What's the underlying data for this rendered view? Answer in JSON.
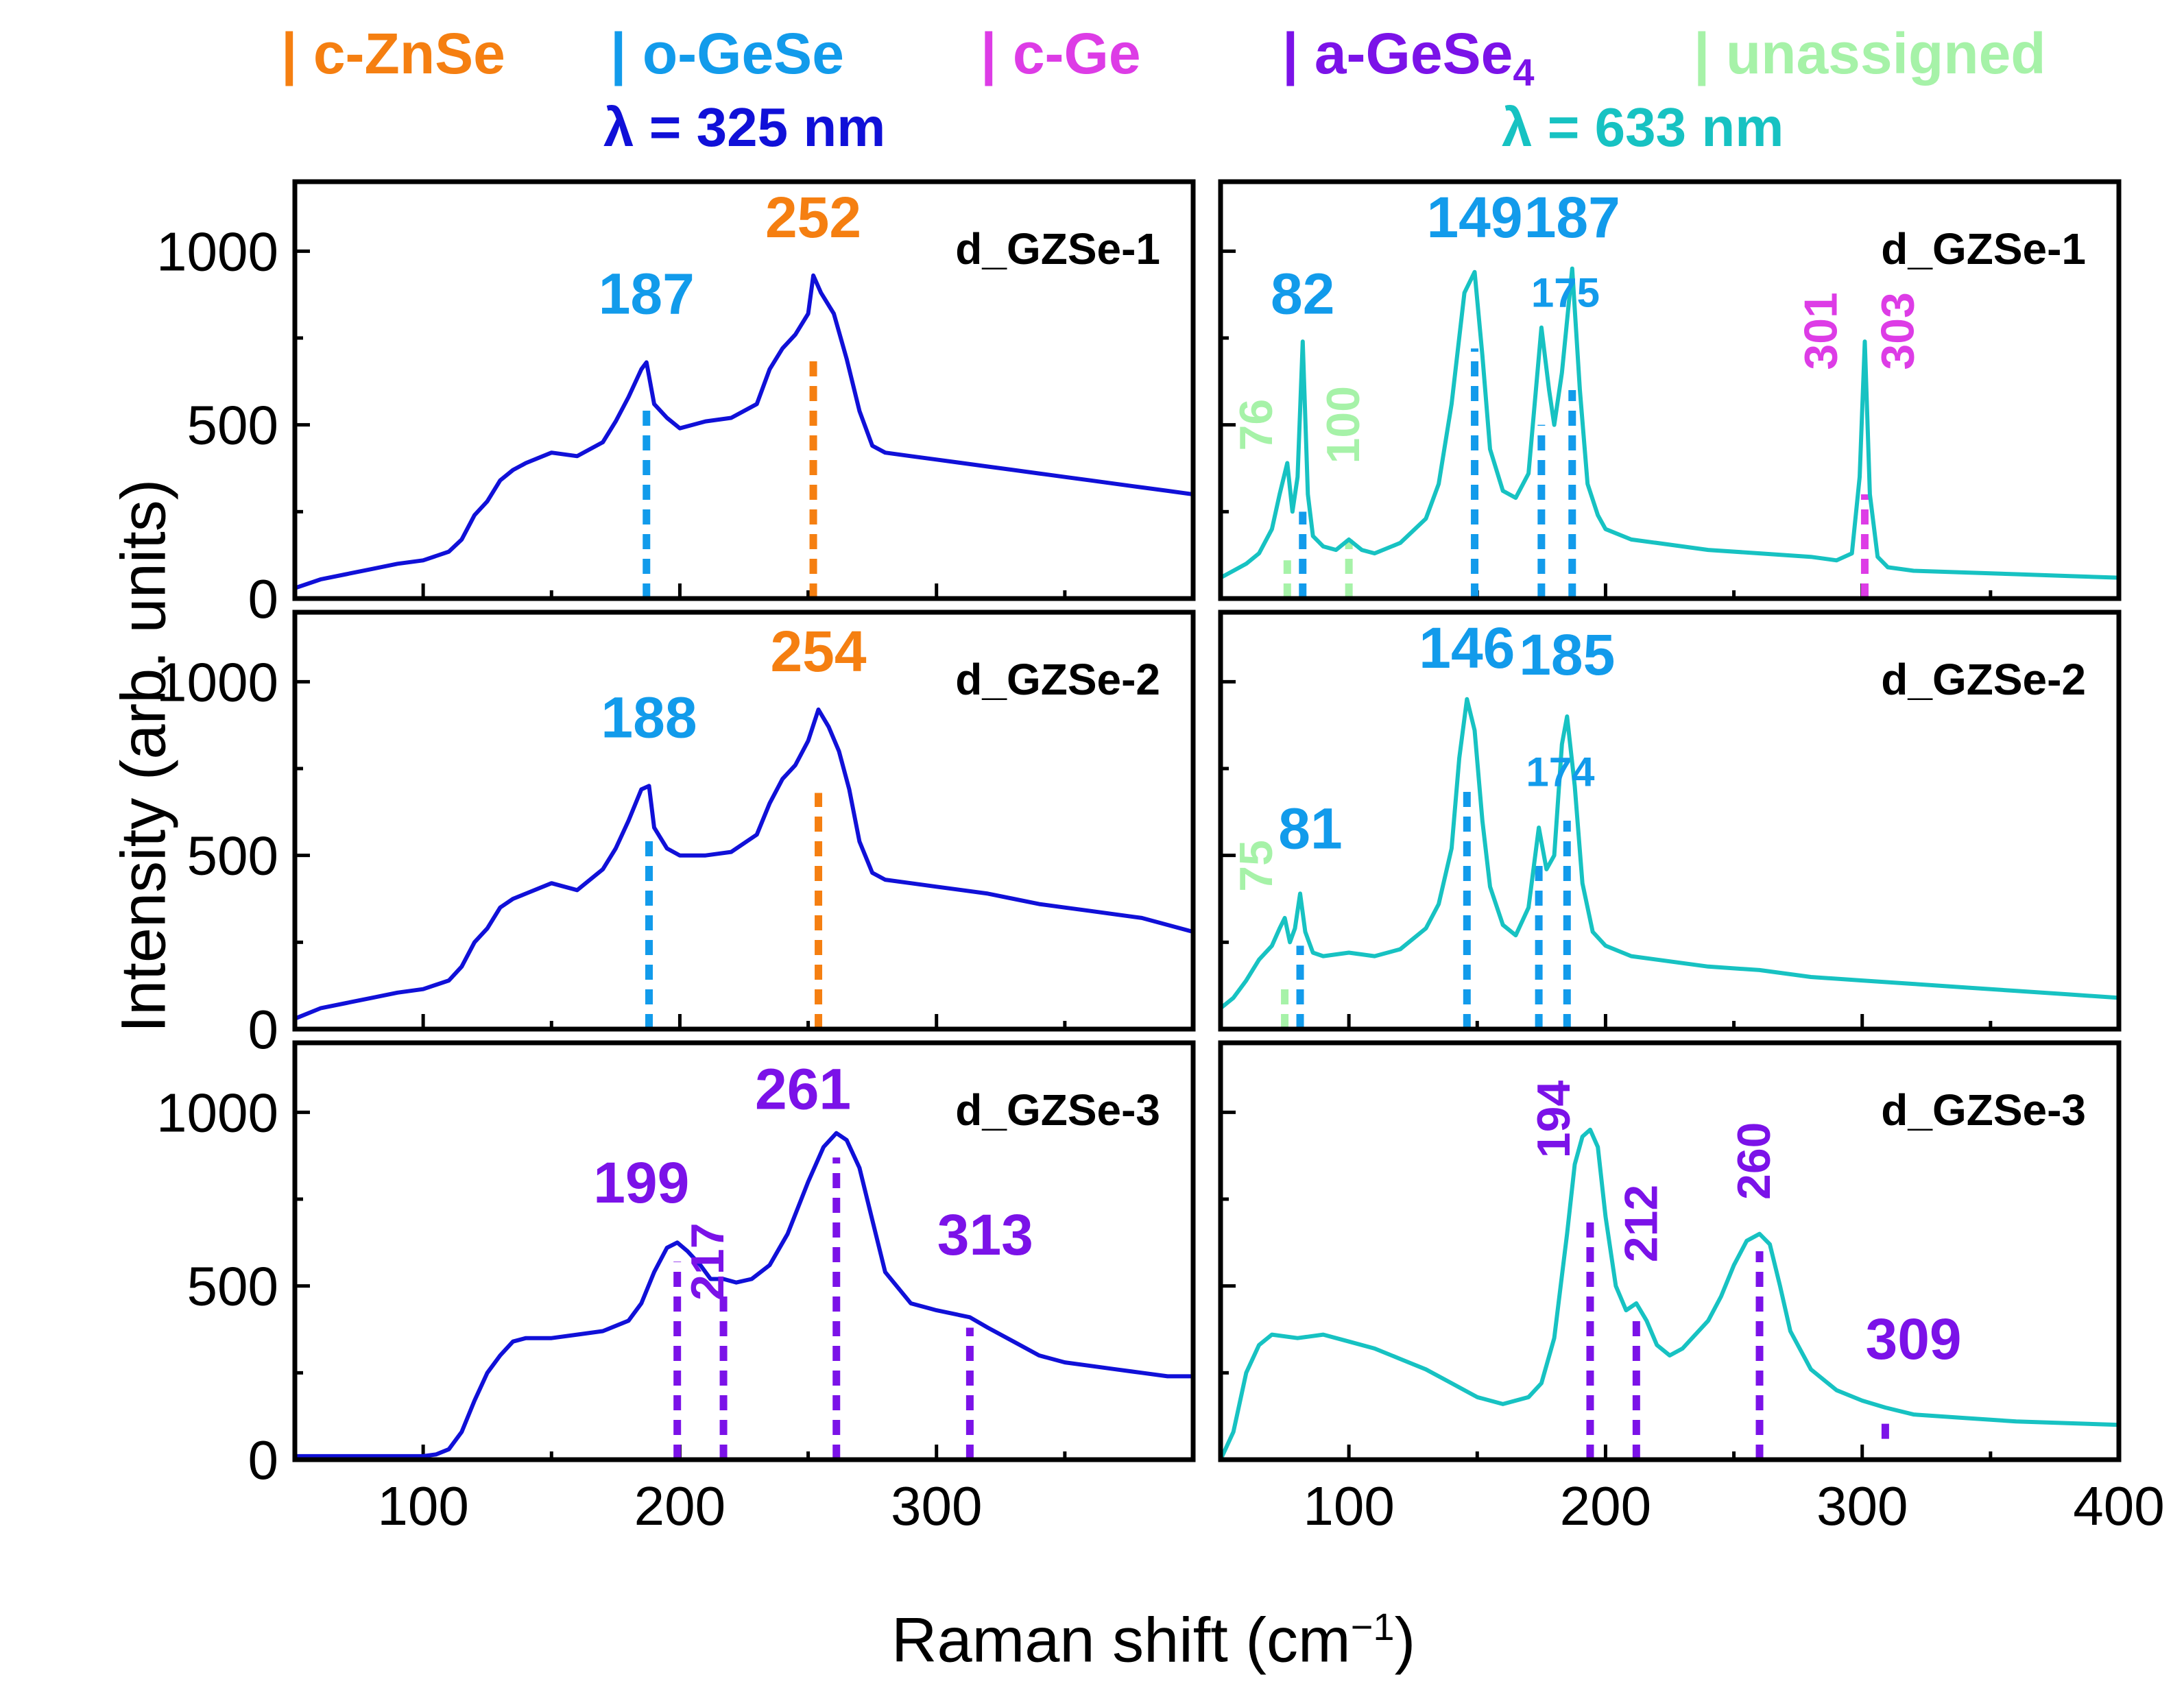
{
  "legend": [
    {
      "label": "| c-ZnSe",
      "color": "#F57F11"
    },
    {
      "label": "| o-GeSe",
      "color": "#129BEB"
    },
    {
      "label": "| c-Ge",
      "color": "#DD3CE6"
    },
    {
      "label": "| a-GeSe",
      "sub": "4",
      "color": "#7B12E8"
    },
    {
      "label": "| unassigned",
      "color": "#A6F2A8"
    }
  ],
  "lambda_left": "λ = 325 nm",
  "lambda_right": "λ = 633 nm",
  "lambda_left_color": "#1010D8",
  "lambda_right_color": "#17C2C2",
  "ylabel": "Intensity (arb. units)",
  "xlabel": "Raman shift (cm",
  "xlabel_sup": "−1",
  "xlabel_close": ")",
  "chart_data": [
    {
      "type": "line",
      "id": "left-1",
      "title": "d_GZSe-1",
      "laser": "325 nm",
      "series_color": "#1010D8",
      "xlim": [
        50,
        400
      ],
      "ylim": [
        0,
        1200
      ],
      "xticks": [],
      "yticks": [
        0,
        500,
        1000
      ],
      "ytick_labels": [
        "0",
        "500",
        "1000"
      ],
      "x": [
        50,
        60,
        70,
        80,
        90,
        100,
        110,
        115,
        120,
        125,
        130,
        135,
        140,
        150,
        160,
        170,
        175,
        180,
        185,
        187,
        190,
        195,
        200,
        210,
        220,
        230,
        235,
        240,
        245,
        250,
        252,
        255,
        260,
        265,
        270,
        275,
        280,
        290,
        300,
        310,
        320,
        330,
        340,
        350,
        360,
        370,
        380,
        390,
        400
      ],
      "y": [
        30,
        55,
        70,
        85,
        100,
        110,
        135,
        170,
        240,
        280,
        340,
        370,
        390,
        420,
        410,
        450,
        510,
        580,
        660,
        680,
        560,
        520,
        490,
        510,
        520,
        560,
        660,
        720,
        760,
        820,
        930,
        880,
        820,
        690,
        540,
        440,
        420,
        410,
        400,
        390,
        380,
        370,
        360,
        350,
        340,
        330,
        320,
        310,
        300
      ],
      "annotations": [
        {
          "label": "187",
          "x": 187,
          "color": "#129BEB",
          "orientation": "horizontal",
          "text_y": 820
        },
        {
          "label": "252",
          "x": 252,
          "color": "#F57F11",
          "orientation": "horizontal",
          "text_y": 1040
        }
      ],
      "markers": [
        {
          "x": 187,
          "y0": 0,
          "y1": 550,
          "color": "#129BEB"
        },
        {
          "x": 252,
          "y0": 0,
          "y1": 700,
          "color": "#F57F11"
        }
      ]
    },
    {
      "type": "line",
      "id": "left-2",
      "title": "d_GZSe-2",
      "laser": "325 nm",
      "series_color": "#1010D8",
      "xlim": [
        50,
        400
      ],
      "ylim": [
        0,
        1200
      ],
      "xticks": [],
      "yticks": [
        0,
        500,
        1000
      ],
      "ytick_labels": [
        "0",
        "500",
        "1000"
      ],
      "x": [
        50,
        60,
        70,
        80,
        90,
        100,
        110,
        115,
        120,
        125,
        130,
        135,
        140,
        150,
        160,
        170,
        175,
        180,
        185,
        188,
        190,
        195,
        200,
        210,
        220,
        230,
        235,
        240,
        245,
        250,
        254,
        258,
        262,
        266,
        270,
        275,
        280,
        290,
        300,
        310,
        320,
        330,
        340,
        350,
        360,
        370,
        380,
        390,
        400
      ],
      "y": [
        30,
        60,
        75,
        90,
        105,
        115,
        140,
        180,
        250,
        290,
        350,
        375,
        390,
        420,
        400,
        460,
        520,
        600,
        690,
        700,
        580,
        520,
        500,
        500,
        510,
        560,
        650,
        720,
        760,
        830,
        920,
        870,
        800,
        690,
        540,
        450,
        430,
        420,
        410,
        400,
        390,
        375,
        360,
        350,
        340,
        330,
        320,
        300,
        280
      ],
      "annotations": [
        {
          "label": "188",
          "x": 188,
          "color": "#129BEB",
          "orientation": "horizontal",
          "text_y": 840
        },
        {
          "label": "254",
          "x": 254,
          "color": "#F57F11",
          "orientation": "horizontal",
          "text_y": 1030
        }
      ],
      "markers": [
        {
          "x": 188,
          "y0": 0,
          "y1": 560,
          "color": "#129BEB"
        },
        {
          "x": 254,
          "y0": 0,
          "y1": 680,
          "color": "#F57F11"
        }
      ]
    },
    {
      "type": "line",
      "id": "left-3",
      "title": "d_GZSe-3",
      "laser": "325 nm",
      "series_color": "#1010D8",
      "xlim": [
        50,
        400
      ],
      "ylim": [
        0,
        1200
      ],
      "xticks": [
        100,
        200,
        300
      ],
      "xtick_labels": [
        "100",
        "200",
        "300"
      ],
      "yticks": [
        0,
        500,
        1000
      ],
      "ytick_labels": [
        "0",
        "500",
        "1000"
      ],
      "x": [
        50,
        70,
        90,
        100,
        105,
        110,
        115,
        120,
        125,
        130,
        135,
        140,
        150,
        160,
        170,
        180,
        185,
        190,
        195,
        199,
        203,
        208,
        212,
        217,
        222,
        228,
        235,
        242,
        250,
        256,
        261,
        265,
        270,
        275,
        280,
        290,
        300,
        313,
        320,
        330,
        340,
        350,
        360,
        370,
        380,
        390,
        400
      ],
      "y": [
        10,
        10,
        10,
        10,
        15,
        30,
        80,
        170,
        250,
        300,
        340,
        350,
        350,
        360,
        370,
        400,
        450,
        540,
        610,
        625,
        600,
        560,
        520,
        520,
        510,
        520,
        560,
        650,
        800,
        900,
        940,
        920,
        840,
        690,
        540,
        450,
        430,
        410,
        380,
        340,
        300,
        280,
        270,
        260,
        250,
        240,
        240
      ],
      "annotations": [
        {
          "label": "199",
          "x": 199,
          "color": "#7B12E8",
          "orientation": "horizontal",
          "text_x": 185,
          "text_y": 740
        },
        {
          "label": "217",
          "x": 217,
          "color": "#7B12E8",
          "orientation": "vertical",
          "text_x": 217,
          "text_y": 570
        },
        {
          "label": "261",
          "x": 261,
          "color": "#7B12E8",
          "orientation": "horizontal",
          "text_x": 248,
          "text_y": 1010
        },
        {
          "label": "313",
          "x": 313,
          "color": "#7B12E8",
          "orientation": "horizontal",
          "text_x": 319,
          "text_y": 590
        }
      ],
      "markers": [
        {
          "x": 199,
          "y0": 0,
          "y1": 570,
          "color": "#7B12E8"
        },
        {
          "x": 217,
          "y0": 0,
          "y1": 470,
          "color": "#7B12E8"
        },
        {
          "x": 261,
          "y0": 0,
          "y1": 870,
          "color": "#7B12E8"
        },
        {
          "x": 313,
          "y0": 0,
          "y1": 380,
          "color": "#7B12E8"
        }
      ]
    },
    {
      "type": "line",
      "id": "right-1",
      "title": "d_GZSe-1",
      "laser": "633 nm",
      "series_color": "#17C2C2",
      "xlim": [
        50,
        400
      ],
      "ylim": [
        0,
        1200
      ],
      "xticks": [],
      "yticks": [
        0,
        500,
        1000
      ],
      "ytick_labels": [],
      "x": [
        50,
        55,
        60,
        65,
        70,
        73,
        76,
        78,
        80,
        82,
        84,
        86,
        90,
        95,
        100,
        105,
        110,
        120,
        130,
        135,
        140,
        145,
        149,
        152,
        155,
        160,
        165,
        170,
        175,
        178,
        180,
        183,
        187,
        190,
        193,
        197,
        200,
        210,
        220,
        240,
        260,
        280,
        290,
        296,
        299,
        301,
        303,
        306,
        310,
        320,
        340,
        360,
        380,
        400
      ],
      "y": [
        60,
        80,
        100,
        130,
        200,
        300,
        390,
        250,
        350,
        740,
        300,
        180,
        150,
        140,
        170,
        140,
        130,
        160,
        230,
        330,
        560,
        880,
        940,
        700,
        430,
        310,
        290,
        360,
        780,
        600,
        500,
        650,
        950,
        600,
        330,
        240,
        200,
        170,
        160,
        140,
        130,
        120,
        110,
        130,
        350,
        740,
        300,
        120,
        90,
        80,
        75,
        70,
        65,
        60
      ],
      "annotations": [
        {
          "label": "82",
          "x": 82,
          "color": "#129BEB",
          "orientation": "horizontal",
          "text_y": 820
        },
        {
          "label": "76",
          "x": 76,
          "color": "#A6F2A8",
          "orientation": "vertical",
          "text_x": 70,
          "text_y": 500
        },
        {
          "label": "100",
          "x": 100,
          "color": "#A6F2A8",
          "orientation": "vertical",
          "text_x": 104,
          "text_y": 500
        },
        {
          "label": "149",
          "x": 149,
          "color": "#129BEB",
          "orientation": "horizontal",
          "text_y": 1040
        },
        {
          "label": "175",
          "x": 175,
          "color": "#129BEB",
          "orientation": "small",
          "text_x": 171,
          "text_y": 840
        },
        {
          "label": "187",
          "x": 187,
          "color": "#129BEB",
          "orientation": "horizontal",
          "text_y": 1040
        },
        {
          "label": "301",
          "x": 301,
          "color": "#DD3CE6",
          "orientation": "vertical",
          "text_x": 290,
          "text_y": 770
        },
        {
          "label": "303",
          "x": 303,
          "color": "#DD3CE6",
          "orientation": "vertical",
          "text_x": 320,
          "text_y": 770
        }
      ],
      "markers": [
        {
          "x": 76,
          "y0": 0,
          "y1": 110,
          "color": "#A6F2A8"
        },
        {
          "x": 82,
          "y0": 0,
          "y1": 250,
          "color": "#129BEB"
        },
        {
          "x": 100,
          "y0": 0,
          "y1": 170,
          "color": "#A6F2A8"
        },
        {
          "x": 149,
          "y0": 0,
          "y1": 720,
          "color": "#129BEB"
        },
        {
          "x": 175,
          "y0": 0,
          "y1": 500,
          "color": "#129BEB"
        },
        {
          "x": 187,
          "y0": 0,
          "y1": 600,
          "color": "#129BEB"
        },
        {
          "x": 301,
          "y0": 0,
          "y1": 300,
          "color": "#DD3CE6"
        }
      ]
    },
    {
      "type": "line",
      "id": "right-2",
      "title": "d_GZSe-2",
      "laser": "633 nm",
      "series_color": "#17C2C2",
      "xlim": [
        50,
        400
      ],
      "ylim": [
        0,
        1200
      ],
      "xticks": [],
      "yticks": [
        0,
        500,
        1000
      ],
      "ytick_labels": [],
      "x": [
        50,
        55,
        60,
        65,
        70,
        73,
        75,
        77,
        79,
        81,
        83,
        86,
        90,
        100,
        110,
        120,
        130,
        135,
        140,
        143,
        146,
        149,
        152,
        155,
        160,
        165,
        170,
        174,
        177,
        180,
        183,
        185,
        188,
        191,
        195,
        200,
        210,
        220,
        240,
        260,
        280,
        300,
        320,
        340,
        360,
        380,
        400
      ],
      "y": [
        60,
        90,
        140,
        200,
        240,
        290,
        320,
        250,
        290,
        390,
        280,
        220,
        210,
        220,
        210,
        230,
        290,
        360,
        520,
        780,
        950,
        860,
        600,
        410,
        300,
        270,
        350,
        580,
        460,
        500,
        820,
        900,
        700,
        420,
        280,
        240,
        210,
        200,
        180,
        170,
        150,
        140,
        130,
        120,
        110,
        100,
        90
      ],
      "annotations": [
        {
          "label": "75",
          "x": 75,
          "color": "#A6F2A8",
          "orientation": "vertical",
          "text_x": 70,
          "text_y": 470
        },
        {
          "label": "81",
          "x": 81,
          "color": "#129BEB",
          "orientation": "horizontal",
          "text_x": 85,
          "text_y": 520
        },
        {
          "label": "146",
          "x": 146,
          "color": "#129BEB",
          "orientation": "horizontal",
          "text_y": 1040
        },
        {
          "label": "174",
          "x": 174,
          "color": "#129BEB",
          "orientation": "small",
          "text_x": 169,
          "text_y": 700
        },
        {
          "label": "185",
          "x": 185,
          "color": "#129BEB",
          "orientation": "horizontal",
          "text_y": 1020
        }
      ],
      "markers": [
        {
          "x": 75,
          "y0": 0,
          "y1": 120,
          "color": "#A6F2A8"
        },
        {
          "x": 81,
          "y0": 0,
          "y1": 240,
          "color": "#129BEB"
        },
        {
          "x": 146,
          "y0": 0,
          "y1": 700,
          "color": "#129BEB"
        },
        {
          "x": 174,
          "y0": 0,
          "y1": 470,
          "color": "#129BEB"
        },
        {
          "x": 185,
          "y0": 0,
          "y1": 600,
          "color": "#129BEB"
        }
      ]
    },
    {
      "type": "line",
      "id": "right-3",
      "title": "d_GZSe-3",
      "laser": "633 nm",
      "series_color": "#17C2C2",
      "xlim": [
        50,
        400
      ],
      "ylim": [
        0,
        1200
      ],
      "xticks": [
        100,
        200,
        300,
        400
      ],
      "xtick_labels": [
        "100",
        "200",
        "300",
        "400"
      ],
      "yticks": [
        0,
        500,
        1000
      ],
      "ytick_labels": [],
      "x": [
        50,
        55,
        60,
        65,
        70,
        80,
        90,
        100,
        110,
        120,
        130,
        140,
        150,
        160,
        170,
        175,
        180,
        185,
        188,
        191,
        194,
        197,
        200,
        204,
        208,
        212,
        216,
        220,
        225,
        230,
        240,
        245,
        250,
        255,
        260,
        264,
        268,
        272,
        280,
        290,
        300,
        309,
        320,
        340,
        360,
        380,
        400
      ],
      "y": [
        0,
        80,
        250,
        330,
        360,
        350,
        360,
        340,
        320,
        290,
        260,
        220,
        180,
        160,
        180,
        220,
        350,
        650,
        850,
        930,
        950,
        900,
        700,
        500,
        430,
        450,
        400,
        330,
        300,
        320,
        400,
        470,
        560,
        630,
        650,
        620,
        500,
        370,
        260,
        200,
        170,
        150,
        130,
        120,
        110,
        105,
        100
      ],
      "annotations": [
        {
          "label": "194",
          "x": 194,
          "color": "#7B12E8",
          "orientation": "vertical",
          "text_x": 186,
          "text_y": 980
        },
        {
          "label": "212",
          "x": 212,
          "color": "#7B12E8",
          "orientation": "vertical",
          "text_x": 220,
          "text_y": 680
        },
        {
          "label": "260",
          "x": 260,
          "color": "#7B12E8",
          "orientation": "vertical",
          "text_x": 264,
          "text_y": 860
        },
        {
          "label": "309",
          "x": 309,
          "color": "#7B12E8",
          "orientation": "horizontal",
          "text_x": 320,
          "text_y": 290
        }
      ],
      "markers": [
        {
          "x": 194,
          "y0": 0,
          "y1": 700,
          "color": "#7B12E8"
        },
        {
          "x": 212,
          "y0": 0,
          "y1": 400,
          "color": "#7B12E8"
        },
        {
          "x": 260,
          "y0": 0,
          "y1": 600,
          "color": "#7B12E8"
        },
        {
          "x": 309,
          "y0": 60,
          "y1": 110,
          "color": "#7B12E8"
        }
      ]
    }
  ]
}
